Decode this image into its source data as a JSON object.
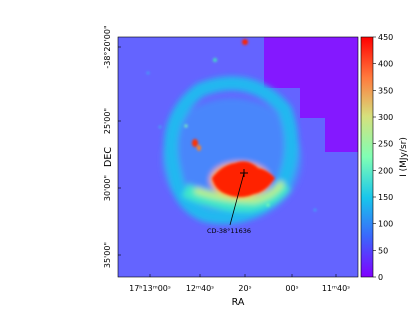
{
  "chart_data": {
    "type": "image",
    "x_label": "RA",
    "y_label": "DEC",
    "x_tick_labels": [
      "17ʰ13ᵐ00ˢ",
      "12ᵐ40ˢ",
      "20ˢ",
      "00ˢ",
      "11ᵐ40ˢ"
    ],
    "y_tick_labels": [
      "-38°20'00\"",
      "25'00\"",
      "30'00\"",
      "35'00\""
    ],
    "annotation": "CD-38°11636",
    "colorbar": {
      "label": "I (MJy/sr)",
      "colormap": "rainbow",
      "clim": [
        0,
        450
      ],
      "ticks": [
        0,
        50,
        100,
        150,
        200,
        250,
        300,
        350,
        400,
        450
      ]
    }
  }
}
